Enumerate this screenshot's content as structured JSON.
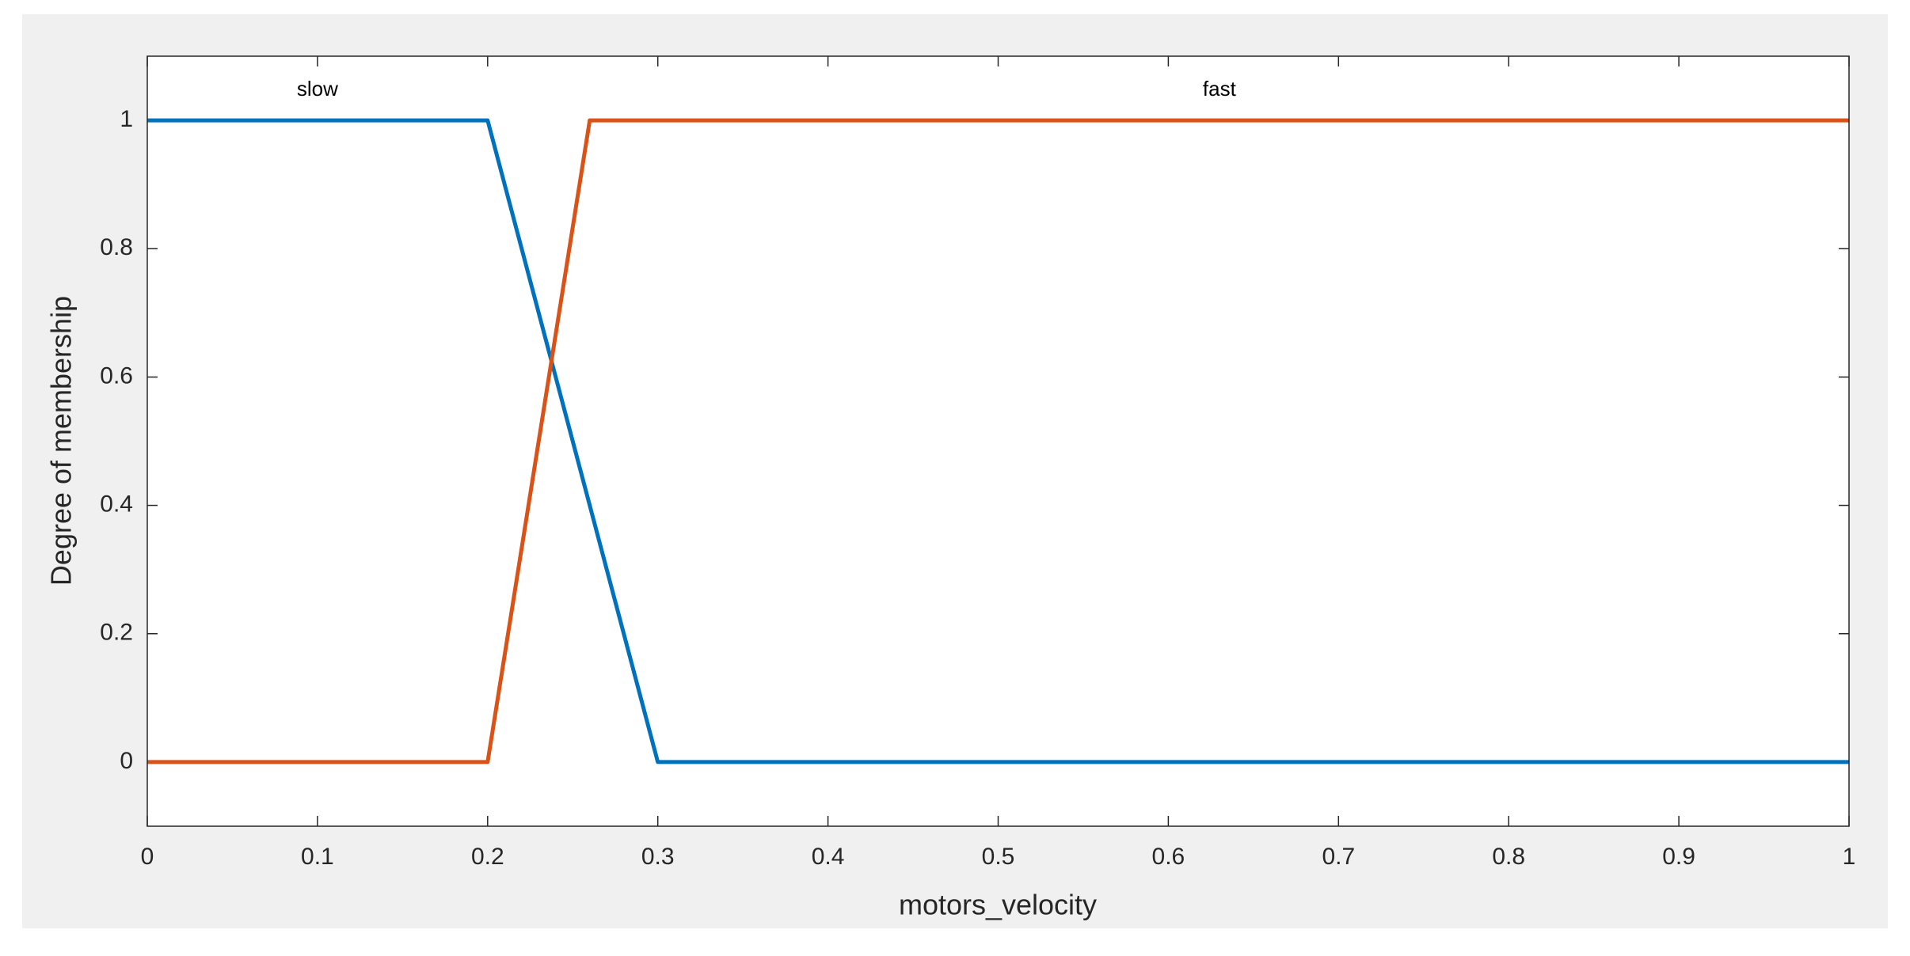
{
  "chart_data": {
    "type": "line",
    "x_label": "motors_velocity",
    "y_label": "Degree of membership",
    "xlim": [
      0,
      1
    ],
    "ylim": [
      -0.1,
      1.1
    ],
    "xticks": [
      0,
      0.1,
      0.2,
      0.3,
      0.4,
      0.5,
      0.6,
      0.7,
      0.8,
      0.9,
      1
    ],
    "yticks": [
      0,
      0.2,
      0.4,
      0.6,
      0.8,
      1
    ],
    "series": [
      {
        "name": "slow",
        "color": "#0072BD",
        "x": [
          0,
          0.2,
          0.3,
          1
        ],
        "values": [
          1,
          1,
          0,
          0
        ]
      },
      {
        "name": "fast",
        "color": "#D95319",
        "x": [
          0,
          0.2,
          0.26,
          1
        ],
        "values": [
          0,
          0,
          1,
          1
        ]
      }
    ]
  }
}
